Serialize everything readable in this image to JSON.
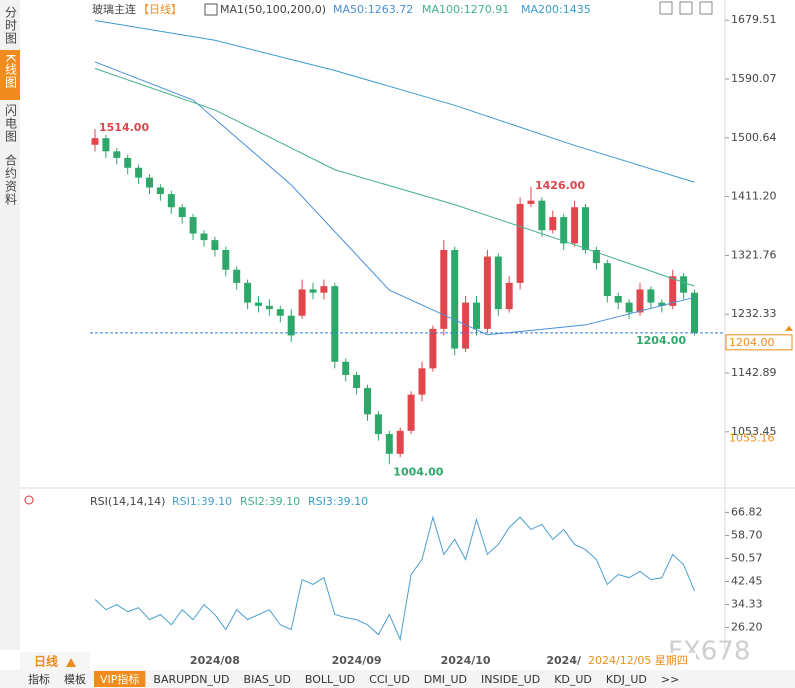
{
  "chart_data": {
    "type": "candlestick",
    "title": "玻璃主连",
    "period": "【日线】",
    "indicator": "MA1(50,100,200,0)",
    "up_color": "#e0464c",
    "down_color": "#2ea86a",
    "categories": [
      null,
      null,
      null,
      null,
      null,
      null,
      null,
      null,
      null,
      null,
      null,
      "2024/08",
      null,
      null,
      null,
      null,
      null,
      null,
      null,
      null,
      null,
      null,
      null,
      null,
      "2024/09",
      null,
      null,
      null,
      null,
      null,
      null,
      null,
      null,
      null,
      "2024/10",
      null,
      null,
      null,
      null,
      null,
      null,
      null,
      null,
      "2024/",
      null,
      null,
      null,
      null,
      null,
      null,
      null,
      null,
      null,
      null,
      null,
      null
    ],
    "open": [
      1490,
      1500,
      1480,
      1470,
      1455,
      1440,
      1425,
      1415,
      1395,
      1380,
      1355,
      1345,
      1330,
      1300,
      1280,
      1250,
      1245,
      1240,
      1230,
      1230,
      1270,
      1265,
      1275,
      1160,
      1140,
      1120,
      1080,
      1050,
      1020,
      1055,
      1110,
      1150,
      1210,
      1330,
      1180,
      1250,
      1210,
      1320,
      1240,
      1280,
      1400,
      1405,
      1360,
      1380,
      1340,
      1395,
      1330,
      1310,
      1260,
      1250,
      1235,
      1270,
      1250,
      1245,
      1290,
      1265
    ],
    "high": [
      1514,
      1505,
      1485,
      1475,
      1460,
      1445,
      1430,
      1420,
      1400,
      1385,
      1360,
      1350,
      1335,
      1305,
      1285,
      1260,
      1255,
      1245,
      1240,
      1285,
      1280,
      1285,
      1280,
      1165,
      1145,
      1125,
      1085,
      1055,
      1060,
      1115,
      1160,
      1215,
      1345,
      1335,
      1260,
      1260,
      1330,
      1325,
      1290,
      1410,
      1426,
      1410,
      1390,
      1385,
      1405,
      1400,
      1335,
      1315,
      1265,
      1255,
      1280,
      1275,
      1255,
      1300,
      1295,
      1270
    ],
    "low": [
      1480,
      1470,
      1460,
      1445,
      1430,
      1415,
      1405,
      1385,
      1370,
      1345,
      1335,
      1320,
      1290,
      1270,
      1240,
      1235,
      1230,
      1220,
      1190,
      1225,
      1255,
      1255,
      1150,
      1130,
      1110,
      1070,
      1040,
      1004,
      1015,
      1050,
      1100,
      1145,
      1200,
      1170,
      1175,
      1200,
      1205,
      1230,
      1235,
      1270,
      1395,
      1350,
      1355,
      1330,
      1335,
      1325,
      1300,
      1250,
      1240,
      1225,
      1230,
      1240,
      1235,
      1240,
      1255,
      1200
    ],
    "close": [
      1500,
      1480,
      1470,
      1455,
      1440,
      1425,
      1415,
      1395,
      1380,
      1355,
      1345,
      1330,
      1300,
      1280,
      1250,
      1245,
      1240,
      1230,
      1200,
      1270,
      1265,
      1275,
      1160,
      1140,
      1120,
      1080,
      1050,
      1020,
      1055,
      1110,
      1150,
      1210,
      1330,
      1180,
      1250,
      1210,
      1320,
      1240,
      1280,
      1400,
      1405,
      1360,
      1380,
      1340,
      1395,
      1330,
      1310,
      1260,
      1250,
      1235,
      1270,
      1250,
      1245,
      1290,
      1265,
      1204
    ],
    "ma": [
      {
        "name": "MA50:1263.72",
        "color": "#4a8fd8",
        "x": [
          0,
          9,
          18,
          27,
          36,
          45,
          55
        ],
        "values": [
          1616,
          1558,
          1429,
          1269,
          1201,
          1216,
          1258
        ]
      },
      {
        "name": "MA100:1270.91",
        "color": "#45b08c",
        "x": [
          0,
          11,
          22,
          33,
          44,
          55
        ],
        "values": [
          1606,
          1543,
          1452,
          1399,
          1338,
          1275
        ]
      },
      {
        "name": "MA200:1435",
        "color": "#3a9bcc",
        "x": [
          0,
          11,
          22,
          33,
          44,
          55
        ],
        "values": [
          1679,
          1649,
          1603,
          1550,
          1489,
          1433
        ]
      }
    ],
    "high_label": {
      "value": 1514,
      "label": "1514.00"
    },
    "peak_label": {
      "value": 1426,
      "label": "1426.00"
    },
    "low_label": {
      "value": 1004,
      "label": "1004.00"
    },
    "last_price": {
      "value": 1204,
      "label": "1204.00"
    },
    "cursor_price": {
      "value": 1055.16,
      "label": "1055.16"
    },
    "cursor_date": "2024/12/05 星期四",
    "ylim": [
      968,
      1698
    ],
    "yticks": [
      1053.45,
      1142.89,
      1232.33,
      1321.76,
      {
        "value": 1411.2,
        "label": "1411.20"
      },
      1500.64,
      1590.07,
      1679.51
    ],
    "rsi": {
      "title": "RSI(14,14,14)",
      "labels": [
        "RSI1:39.10",
        "RSI2:39.10",
        "RSI3:39.10"
      ],
      "color": "#4a9fd0",
      "values": [
        36.1,
        32.5,
        34.3,
        31.8,
        33.2,
        29.0,
        30.8,
        27.2,
        32.5,
        29.0,
        34.3,
        30.8,
        25.5,
        32.5,
        29.0,
        30.8,
        32.5,
        27.2,
        25.5,
        43.1,
        41.4,
        43.8,
        30.8,
        29.7,
        29.0,
        27.2,
        23.7,
        30.8,
        22.0,
        44.9,
        50.2,
        65.1,
        52.0,
        57.3,
        50.2,
        64.3,
        52.0,
        55.5,
        61.5,
        65.1,
        60.8,
        62.6,
        57.3,
        60.8,
        55.5,
        53.7,
        50.2,
        41.4,
        44.9,
        43.8,
        46.0,
        43.1,
        43.8,
        52.0,
        48.4,
        39.1
      ],
      "ylim": [
        19,
        74
      ],
      "yticks": [
        {
          "value": 26.2,
          "label": "26.20"
        },
        34.33,
        42.45,
        50.57,
        {
          "value": 58.7,
          "label": "58.70"
        },
        66.82
      ]
    }
  },
  "left_tabs": [
    "分时图",
    "K线图",
    "闪电图",
    "合约资料"
  ],
  "period_button": "日线",
  "bottom_tabs": [
    "指标",
    "模板",
    "VIP指标",
    "BARUPDN_UD",
    "BIAS_UD",
    "BOLL_UD",
    "CCI_UD",
    "DMI_UD",
    "INSIDE_UD",
    "KD_UD",
    "KDJ_UD",
    ">>"
  ],
  "watermark": "FX678"
}
